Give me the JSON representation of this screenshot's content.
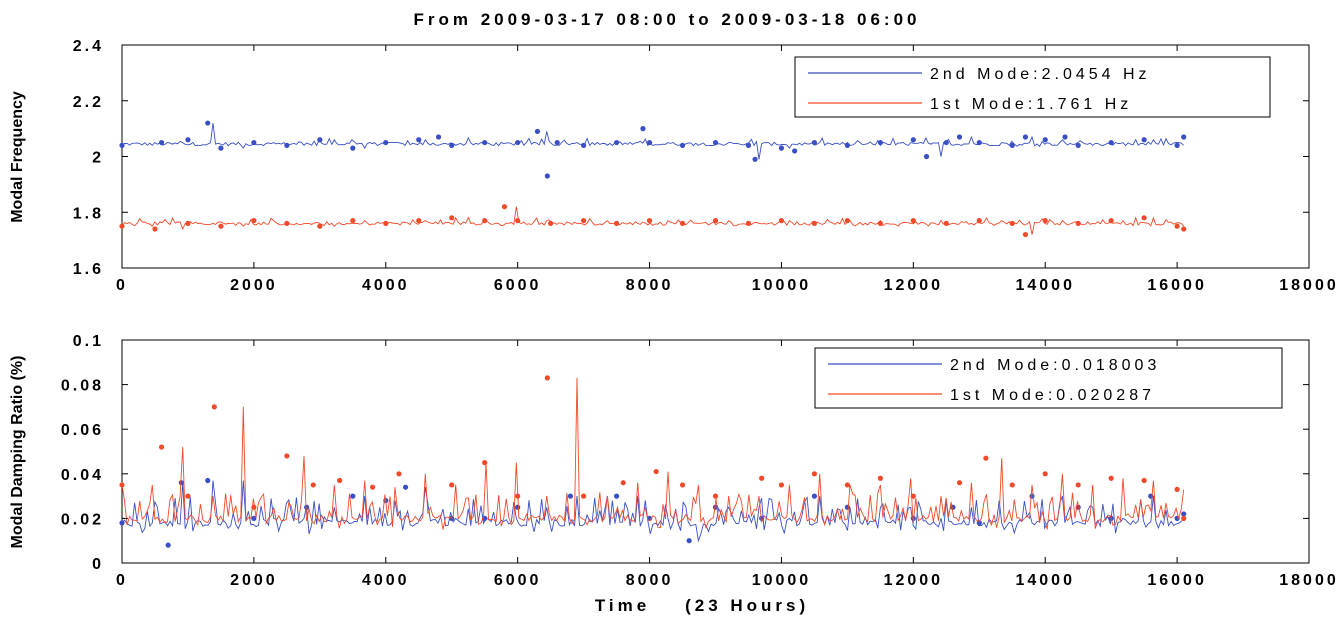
{
  "figure_title": "From 2009-03-17 08:00 to 2009-03-18 06:00",
  "chart_data": [
    {
      "type": "line",
      "title": "From 2009-03-17 08:00 to 2009-03-18 06:00",
      "xlabel": "",
      "ylabel": "Modal Frequency",
      "xlim": [
        0,
        18000
      ],
      "ylim": [
        1.6,
        2.4
      ],
      "x_ticks": [
        "0",
        "2000",
        "4000",
        "6000",
        "8000",
        "10000",
        "12000",
        "14000",
        "16000",
        "18000"
      ],
      "y_ticks": [
        "1.6",
        "1.8",
        "2",
        "2.2",
        "2.4"
      ],
      "grid": false,
      "legend_position": "top-right",
      "series": [
        {
          "name": "2nd Mode:2.0454 Hz",
          "color": "#3b4fc4",
          "baseline": 2.045,
          "x": [
            0,
            600,
            1000,
            1300,
            1500,
            2000,
            2500,
            3000,
            3500,
            4000,
            4500,
            4800,
            5000,
            5500,
            6000,
            6300,
            6450,
            6600,
            7000,
            7500,
            7900,
            8000,
            8500,
            9000,
            9500,
            9600,
            10000,
            10200,
            10500,
            11000,
            11500,
            12000,
            12200,
            12500,
            12700,
            13000,
            13500,
            13700,
            14000,
            14300,
            14500,
            15000,
            15500,
            16000,
            16100
          ],
          "y": [
            2.04,
            2.05,
            2.06,
            2.12,
            2.03,
            2.05,
            2.04,
            2.06,
            2.03,
            2.05,
            2.06,
            2.07,
            2.04,
            2.05,
            2.05,
            2.09,
            1.93,
            2.05,
            2.04,
            2.05,
            2.1,
            2.05,
            2.04,
            2.05,
            2.04,
            1.99,
            2.03,
            2.02,
            2.05,
            2.04,
            2.05,
            2.06,
            2.0,
            2.05,
            2.07,
            2.05,
            2.04,
            2.07,
            2.06,
            2.07,
            2.04,
            2.05,
            2.06,
            2.04,
            2.07
          ]
        },
        {
          "name": "1st Mode:1.761 Hz",
          "color": "#f04a2a",
          "baseline": 1.76,
          "x": [
            0,
            500,
            1000,
            1500,
            2000,
            2500,
            3000,
            3500,
            4000,
            4500,
            5000,
            5500,
            5800,
            6000,
            6500,
            7000,
            7500,
            8000,
            8500,
            9000,
            9500,
            10000,
            10500,
            11000,
            11500,
            12000,
            12500,
            13000,
            13500,
            13700,
            14000,
            14500,
            15000,
            15500,
            16000,
            16100
          ],
          "y": [
            1.75,
            1.74,
            1.76,
            1.75,
            1.77,
            1.76,
            1.75,
            1.77,
            1.76,
            1.77,
            1.78,
            1.77,
            1.82,
            1.77,
            1.76,
            1.77,
            1.76,
            1.77,
            1.76,
            1.77,
            1.76,
            1.77,
            1.76,
            1.77,
            1.76,
            1.77,
            1.76,
            1.77,
            1.76,
            1.72,
            1.77,
            1.76,
            1.77,
            1.78,
            1.75,
            1.74
          ]
        }
      ]
    },
    {
      "type": "line",
      "title": "",
      "xlabel": "Time    (23 Hours)",
      "ylabel": "Modal Damping Ratio (%)",
      "xlim": [
        0,
        18000
      ],
      "ylim": [
        0,
        0.1
      ],
      "x_ticks": [
        "0",
        "2000",
        "4000",
        "6000",
        "8000",
        "10000",
        "12000",
        "14000",
        "16000",
        "18000"
      ],
      "y_ticks": [
        "0",
        "0.02",
        "0.04",
        "0.06",
        "0.08",
        "0.1"
      ],
      "grid": false,
      "legend_position": "top-right",
      "series": [
        {
          "name": "2nd Mode:0.018003",
          "color": "#3b4fc4",
          "baseline": 0.018,
          "x": [
            0,
            700,
            900,
            1300,
            2000,
            2800,
            3500,
            4000,
            4300,
            5000,
            5500,
            6000,
            6800,
            7500,
            8000,
            8600,
            9000,
            9700,
            10500,
            11000,
            12000,
            12600,
            13000,
            13800,
            14500,
            15000,
            15600,
            16000,
            16100
          ],
          "y": [
            0.018,
            0.008,
            0.036,
            0.037,
            0.02,
            0.025,
            0.03,
            0.028,
            0.034,
            0.02,
            0.02,
            0.025,
            0.03,
            0.03,
            0.02,
            0.01,
            0.025,
            0.02,
            0.03,
            0.025,
            0.02,
            0.025,
            0.018,
            0.03,
            0.025,
            0.02,
            0.03,
            0.02,
            0.022
          ]
        },
        {
          "name": "1st Mode:0.020287",
          "color": "#f04a2a",
          "baseline": 0.02,
          "x": [
            0,
            600,
            1000,
            1400,
            2000,
            2500,
            2900,
            3300,
            3800,
            4200,
            5000,
            5500,
            6000,
            6450,
            7000,
            7600,
            8100,
            8500,
            9000,
            9700,
            10000,
            10500,
            11000,
            11500,
            12000,
            12700,
            13100,
            13500,
            14000,
            14500,
            15000,
            15500,
            16000,
            16100
          ],
          "y": [
            0.035,
            0.052,
            0.03,
            0.07,
            0.025,
            0.048,
            0.035,
            0.037,
            0.034,
            0.04,
            0.035,
            0.045,
            0.03,
            0.083,
            0.03,
            0.036,
            0.041,
            0.035,
            0.03,
            0.038,
            0.035,
            0.04,
            0.035,
            0.038,
            0.03,
            0.036,
            0.047,
            0.035,
            0.04,
            0.035,
            0.038,
            0.037,
            0.033,
            0.02
          ]
        }
      ]
    }
  ]
}
